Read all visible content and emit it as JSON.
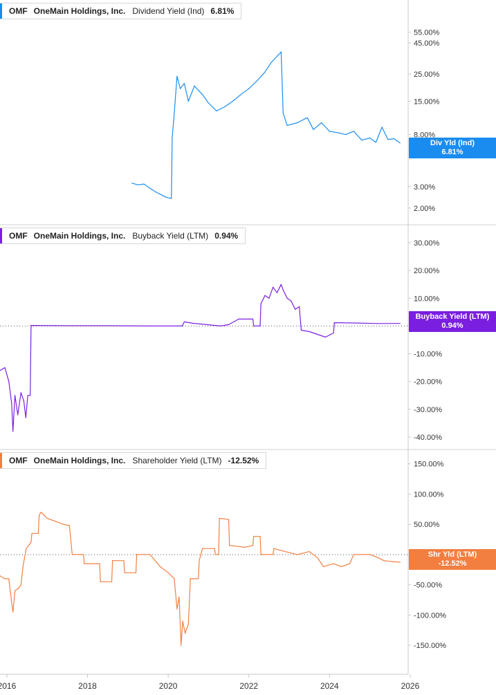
{
  "chart_data": {
    "type": "line",
    "x_axis": {
      "ticks": [
        "2016",
        "2018",
        "2020",
        "2022",
        "2024",
        "2026"
      ],
      "range": [
        2015.83,
        2025.95
      ]
    },
    "panels": [
      {
        "ticker": "OMF",
        "company": "OneMain Holdings, Inc.",
        "metric": "Dividend Yield (Ind)",
        "latest": "6.81%",
        "tag_label": "Div Yld (Ind)",
        "tag_value": "6.81%",
        "color": "#1a8cf0",
        "scale": "log",
        "y_range": [
          1.6,
          80
        ],
        "y_ticks": [
          "55.00%",
          "45.00%",
          "25.00%",
          "15.00%",
          "8.00%",
          "6.00%",
          "3.00%",
          "2.00%"
        ],
        "y_tick_values": [
          55,
          45,
          25,
          15,
          8,
          6,
          3,
          2
        ],
        "zero_line": false,
        "series": [
          {
            "x": 2019.1,
            "y": 3.2
          },
          {
            "x": 2019.25,
            "y": 3.1
          },
          {
            "x": 2019.4,
            "y": 3.15
          },
          {
            "x": 2019.55,
            "y": 2.9
          },
          {
            "x": 2019.7,
            "y": 2.7
          },
          {
            "x": 2019.85,
            "y": 2.55
          },
          {
            "x": 2019.95,
            "y": 2.45
          },
          {
            "x": 2020.08,
            "y": 2.4
          },
          {
            "x": 2020.1,
            "y": 7.5
          },
          {
            "x": 2020.15,
            "y": 12
          },
          {
            "x": 2020.22,
            "y": 24
          },
          {
            "x": 2020.3,
            "y": 19
          },
          {
            "x": 2020.4,
            "y": 21
          },
          {
            "x": 2020.5,
            "y": 15
          },
          {
            "x": 2020.65,
            "y": 20
          },
          {
            "x": 2020.85,
            "y": 17
          },
          {
            "x": 2021.0,
            "y": 14.5
          },
          {
            "x": 2021.2,
            "y": 12.5
          },
          {
            "x": 2021.4,
            "y": 13.5
          },
          {
            "x": 2021.6,
            "y": 15
          },
          {
            "x": 2021.8,
            "y": 17
          },
          {
            "x": 2022.0,
            "y": 19
          },
          {
            "x": 2022.2,
            "y": 22
          },
          {
            "x": 2022.4,
            "y": 26
          },
          {
            "x": 2022.55,
            "y": 31
          },
          {
            "x": 2022.7,
            "y": 35
          },
          {
            "x": 2022.8,
            "y": 38
          },
          {
            "x": 2022.85,
            "y": 12
          },
          {
            "x": 2022.95,
            "y": 9.5
          },
          {
            "x": 2023.2,
            "y": 10
          },
          {
            "x": 2023.45,
            "y": 11
          },
          {
            "x": 2023.6,
            "y": 8.8
          },
          {
            "x": 2023.8,
            "y": 10
          },
          {
            "x": 2024.0,
            "y": 8.5
          },
          {
            "x": 2024.2,
            "y": 8.3
          },
          {
            "x": 2024.4,
            "y": 8.0
          },
          {
            "x": 2024.6,
            "y": 8.5
          },
          {
            "x": 2024.8,
            "y": 7.2
          },
          {
            "x": 2025.0,
            "y": 7.5
          },
          {
            "x": 2025.15,
            "y": 6.9
          },
          {
            "x": 2025.3,
            "y": 9.2
          },
          {
            "x": 2025.45,
            "y": 7.3
          },
          {
            "x": 2025.6,
            "y": 7.4
          },
          {
            "x": 2025.75,
            "y": 6.81
          }
        ]
      },
      {
        "ticker": "OMF",
        "company": "OneMain Holdings, Inc.",
        "metric": "Buyback Yield (LTM)",
        "latest": "0.94%",
        "tag_label": "Buyback Yield (LTM)",
        "tag_value": "0.94%",
        "color": "#7a1fe0",
        "scale": "linear",
        "y_range": [
          -42,
          34
        ],
        "y_ticks": [
          "30.00%",
          "20.00%",
          "10.00%",
          "-10.00%",
          "-20.00%",
          "-30.00%",
          "-40.00%"
        ],
        "y_tick_values": [
          30,
          20,
          10,
          -10,
          -20,
          -30,
          -40
        ],
        "zero_line": true,
        "series": [
          {
            "x": 2015.83,
            "y": -16
          },
          {
            "x": 2015.95,
            "y": -15
          },
          {
            "x": 2016.05,
            "y": -20
          },
          {
            "x": 2016.12,
            "y": -28
          },
          {
            "x": 2016.15,
            "y": -38
          },
          {
            "x": 2016.2,
            "y": -25
          },
          {
            "x": 2016.27,
            "y": -32
          },
          {
            "x": 2016.35,
            "y": -24
          },
          {
            "x": 2016.42,
            "y": -27
          },
          {
            "x": 2016.47,
            "y": -33
          },
          {
            "x": 2016.52,
            "y": -25
          },
          {
            "x": 2016.58,
            "y": -25
          },
          {
            "x": 2016.6,
            "y": 0.2
          },
          {
            "x": 2017.5,
            "y": 0.1
          },
          {
            "x": 2018.5,
            "y": 0.1
          },
          {
            "x": 2019.5,
            "y": 0
          },
          {
            "x": 2020.35,
            "y": 0
          },
          {
            "x": 2020.4,
            "y": 1.5
          },
          {
            "x": 2020.6,
            "y": 1.0
          },
          {
            "x": 2021.3,
            "y": 0
          },
          {
            "x": 2021.5,
            "y": 0.5
          },
          {
            "x": 2021.75,
            "y": 2.5
          },
          {
            "x": 2022.1,
            "y": 2.5
          },
          {
            "x": 2022.12,
            "y": 0
          },
          {
            "x": 2022.28,
            "y": 0
          },
          {
            "x": 2022.3,
            "y": 8
          },
          {
            "x": 2022.4,
            "y": 11
          },
          {
            "x": 2022.5,
            "y": 10
          },
          {
            "x": 2022.6,
            "y": 14
          },
          {
            "x": 2022.7,
            "y": 12
          },
          {
            "x": 2022.8,
            "y": 15
          },
          {
            "x": 2022.85,
            "y": 13
          },
          {
            "x": 2022.95,
            "y": 10
          },
          {
            "x": 2023.05,
            "y": 9
          },
          {
            "x": 2023.15,
            "y": 6
          },
          {
            "x": 2023.25,
            "y": 7
          },
          {
            "x": 2023.3,
            "y": -1.5
          },
          {
            "x": 2023.5,
            "y": -2.0
          },
          {
            "x": 2023.7,
            "y": -3.0
          },
          {
            "x": 2023.9,
            "y": -4.0
          },
          {
            "x": 2024.1,
            "y": -2.5
          },
          {
            "x": 2024.12,
            "y": 1.2
          },
          {
            "x": 2024.6,
            "y": 1.1
          },
          {
            "x": 2025.2,
            "y": 0.9
          },
          {
            "x": 2025.75,
            "y": 0.94
          }
        ]
      },
      {
        "ticker": "OMF",
        "company": "OneMain Holdings, Inc.",
        "metric": "Shareholder Yield (LTM)",
        "latest": "-12.52%",
        "tag_label": "Shr Yld (LTM)",
        "tag_value": "-12.52%",
        "color": "#f27f40",
        "scale": "linear",
        "y_range": [
          -175,
          160
        ],
        "y_ticks": [
          "150.00%",
          "100.00%",
          "50.00%",
          "0.00%",
          "-50.00%",
          "-100.00%",
          "-150.00%"
        ],
        "y_tick_values": [
          150,
          100,
          50,
          0,
          -50,
          -100,
          -150
        ],
        "zero_line": true,
        "series": [
          {
            "x": 2015.83,
            "y": -35
          },
          {
            "x": 2015.95,
            "y": -40
          },
          {
            "x": 2016.05,
            "y": -40
          },
          {
            "x": 2016.12,
            "y": -80
          },
          {
            "x": 2016.15,
            "y": -95
          },
          {
            "x": 2016.2,
            "y": -60
          },
          {
            "x": 2016.3,
            "y": -55
          },
          {
            "x": 2016.35,
            "y": -50
          },
          {
            "x": 2016.4,
            "y": -20
          },
          {
            "x": 2016.48,
            "y": 10
          },
          {
            "x": 2016.6,
            "y": 20
          },
          {
            "x": 2016.62,
            "y": 35
          },
          {
            "x": 2016.78,
            "y": 35
          },
          {
            "x": 2016.8,
            "y": 65
          },
          {
            "x": 2016.85,
            "y": 70
          },
          {
            "x": 2017.0,
            "y": 60
          },
          {
            "x": 2017.2,
            "y": 55
          },
          {
            "x": 2017.4,
            "y": 50
          },
          {
            "x": 2017.55,
            "y": 48
          },
          {
            "x": 2017.62,
            "y": 0
          },
          {
            "x": 2017.9,
            "y": 0
          },
          {
            "x": 2017.92,
            "y": -15
          },
          {
            "x": 2018.3,
            "y": -15
          },
          {
            "x": 2018.32,
            "y": -45
          },
          {
            "x": 2018.6,
            "y": -45
          },
          {
            "x": 2018.62,
            "y": -10
          },
          {
            "x": 2018.9,
            "y": -10
          },
          {
            "x": 2018.92,
            "y": -30
          },
          {
            "x": 2019.2,
            "y": -30
          },
          {
            "x": 2019.22,
            "y": 0
          },
          {
            "x": 2019.55,
            "y": 0
          },
          {
            "x": 2019.8,
            "y": -20
          },
          {
            "x": 2020.0,
            "y": -30
          },
          {
            "x": 2020.15,
            "y": -40
          },
          {
            "x": 2020.22,
            "y": -90
          },
          {
            "x": 2020.27,
            "y": -70
          },
          {
            "x": 2020.32,
            "y": -150
          },
          {
            "x": 2020.36,
            "y": -110
          },
          {
            "x": 2020.42,
            "y": -130
          },
          {
            "x": 2020.5,
            "y": -115
          },
          {
            "x": 2020.55,
            "y": -40
          },
          {
            "x": 2020.75,
            "y": -40
          },
          {
            "x": 2020.77,
            "y": -10
          },
          {
            "x": 2020.85,
            "y": 10
          },
          {
            "x": 2021.15,
            "y": 10
          },
          {
            "x": 2021.17,
            "y": 0
          },
          {
            "x": 2021.25,
            "y": 0
          },
          {
            "x": 2021.27,
            "y": 60
          },
          {
            "x": 2021.5,
            "y": 58
          },
          {
            "x": 2021.52,
            "y": 15
          },
          {
            "x": 2021.9,
            "y": 12
          },
          {
            "x": 2022.1,
            "y": 15
          },
          {
            "x": 2022.12,
            "y": 30
          },
          {
            "x": 2022.28,
            "y": 30
          },
          {
            "x": 2022.3,
            "y": 0
          },
          {
            "x": 2022.6,
            "y": 0
          },
          {
            "x": 2022.62,
            "y": 10
          },
          {
            "x": 2022.9,
            "y": 5
          },
          {
            "x": 2023.2,
            "y": 0
          },
          {
            "x": 2023.5,
            "y": 5
          },
          {
            "x": 2023.7,
            "y": -5
          },
          {
            "x": 2023.85,
            "y": -20
          },
          {
            "x": 2024.1,
            "y": -15
          },
          {
            "x": 2024.3,
            "y": -20
          },
          {
            "x": 2024.5,
            "y": -15
          },
          {
            "x": 2024.6,
            "y": 0
          },
          {
            "x": 2025.0,
            "y": 0
          },
          {
            "x": 2025.2,
            "y": -5
          },
          {
            "x": 2025.35,
            "y": -10
          },
          {
            "x": 2025.6,
            "y": -12
          },
          {
            "x": 2025.75,
            "y": -12.52
          }
        ]
      }
    ]
  }
}
